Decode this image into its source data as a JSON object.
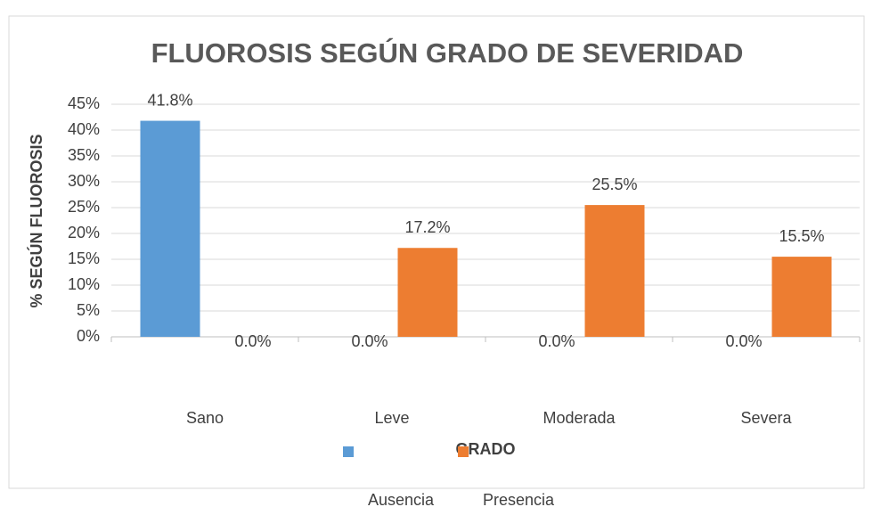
{
  "chart_data": {
    "type": "bar",
    "title": "FLUOROSIS SEGÚN GRADO DE SEVERIDAD",
    "y_label": "% SEGÚN FLUOROSIS",
    "x_label": "GRADO",
    "categories": [
      "Sano",
      "Leve",
      "Moderada",
      "Severa"
    ],
    "series": [
      {
        "name": "Ausencia",
        "color": "#5b9bd5",
        "values": [
          41.8,
          0,
          0,
          0
        ],
        "value_labels": [
          "41.8%",
          "0.0%",
          "0.0%",
          "0.0%"
        ]
      },
      {
        "name": "Presencia",
        "color": "#ed7d31",
        "values": [
          0,
          17.2,
          25.5,
          15.5
        ],
        "value_labels": [
          "0.0%",
          "17.2%",
          "25.5%",
          "15.5%"
        ]
      }
    ],
    "ylim": [
      0,
      45
    ],
    "yticks": [
      {
        "value": 0,
        "label": "0%"
      },
      {
        "value": 5,
        "label": "5%"
      },
      {
        "value": 10,
        "label": "10%"
      },
      {
        "value": 15,
        "label": "15%"
      },
      {
        "value": 20,
        "label": "20%"
      },
      {
        "value": 25,
        "label": "25%"
      },
      {
        "value": 30,
        "label": "30%"
      },
      {
        "value": 35,
        "label": "35%"
      },
      {
        "value": 40,
        "label": "40%"
      },
      {
        "value": 45,
        "label": "45%"
      }
    ],
    "grid": true
  }
}
